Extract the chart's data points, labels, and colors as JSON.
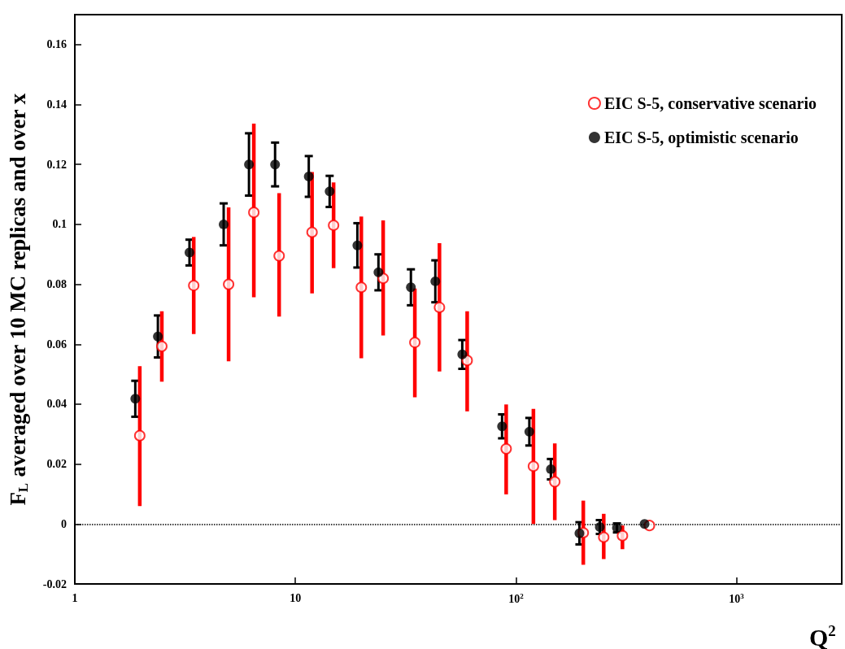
{
  "chart_data": {
    "type": "scatter",
    "xlabel": "Q$^{2}$",
    "ylabel": "F$_{L}$ averaged over 10 MC replicas and over x",
    "log": "x",
    "xlim": [
      1,
      3000
    ],
    "xticks": [
      1,
      10,
      {
        "value": 100,
        "label": "10$^{2}$"
      },
      {
        "value": 1000,
        "label": "10$^{3}$"
      }
    ],
    "ylim": [
      -0.02,
      0.17
    ],
    "yticks": [
      -0.02,
      0,
      0.02,
      0.04,
      0.06,
      0.08,
      0.1,
      0.12,
      0.14,
      0.16
    ],
    "grid": false,
    "legend": "top right",
    "marker": "circle",
    "ref_lines": [
      {
        "axis": "y",
        "value": 0,
        "color": "#000000",
        "line_style": "dotted"
      }
    ],
    "series": [
      {
        "name": "EIC S-5, conservative scenario",
        "color": "#ff0000",
        "x": [
          1.97,
          2.48,
          3.46,
          4.98,
          6.48,
          8.44,
          11.9,
          14.9,
          19.9,
          25.0,
          34.8,
          45,
          60.1,
          90.3,
          120,
          150,
          202,
          250,
          304,
          403
        ],
        "values": [
          0.0295,
          0.0593,
          0.0796,
          0.08,
          0.104,
          0.0895,
          0.0974,
          0.0997,
          0.079,
          0.082,
          0.0606,
          0.0723,
          0.0546,
          0.0251,
          0.0193,
          0.0141,
          -0.0029,
          -0.0044,
          -0.0039,
          -0.0005
        ],
        "errors": [
          [
            0.006,
            0.0527
          ],
          [
            0.0475,
            0.071
          ],
          [
            0.0634,
            0.0958
          ],
          [
            0.0543,
            0.1057
          ],
          [
            0.0757,
            0.1336
          ],
          [
            0.0692,
            0.1104
          ],
          [
            0.077,
            0.1175
          ],
          [
            0.0854,
            0.114
          ],
          [
            0.0553,
            0.1026
          ],
          [
            0.0629,
            0.1013
          ],
          [
            0.0423,
            0.0786
          ],
          [
            0.0509,
            0.0937
          ],
          [
            0.0376,
            0.071
          ],
          [
            0.0099,
            0.0399
          ],
          [
            0,
            0.0384
          ],
          [
            0.0013,
            0.0269
          ],
          [
            -0.0136,
            0.0078
          ],
          [
            -0.0117,
            0.0034
          ],
          [
            -0.0084,
            -0.0005
          ],
          null
        ]
      },
      {
        "name": "EIC S-5, optimistic scenario",
        "color": "#000000",
        "x": [
          1.88,
          2.38,
          3.31,
          4.73,
          6.16,
          8.09,
          11.5,
          14.3,
          19.1,
          23.8,
          33.4,
          43.1,
          57.1,
          86.5,
          115,
          144,
          194,
          240,
          287,
          383
        ],
        "values": [
          0.0418,
          0.0626,
          0.0906,
          0.1,
          0.12,
          0.12,
          0.116,
          0.111,
          0.093,
          0.084,
          0.079,
          0.081,
          0.0566,
          0.0326,
          0.0308,
          0.0183,
          -0.0031,
          -0.001,
          -0.0013,
          0
        ],
        "errors": [
          0.006,
          0.007,
          0.0043,
          0.007,
          0.0104,
          0.0073,
          0.0068,
          0.0052,
          0.0074,
          0.006,
          0.006,
          0.007,
          0.0048,
          0.004,
          0.0046,
          0.0034,
          0.0037,
          0.0023,
          0.0015,
          null
        ]
      }
    ]
  }
}
